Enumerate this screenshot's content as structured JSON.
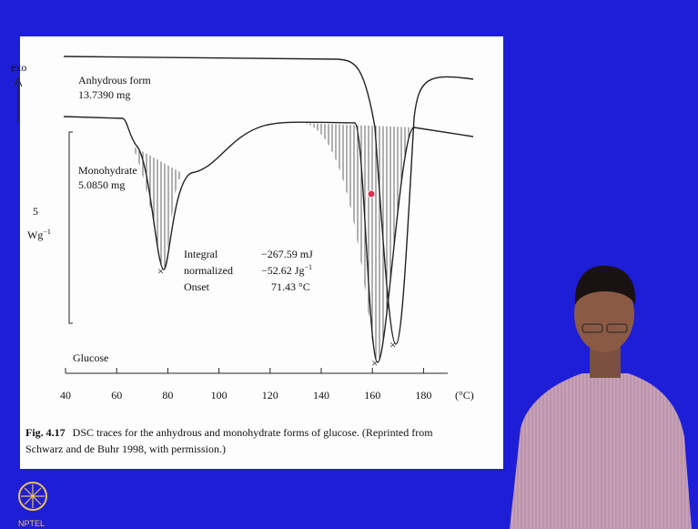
{
  "figure": {
    "y_axis": {
      "direction_label": "exo",
      "scale": "5",
      "unit": "Wg",
      "unit_exponent": "−1"
    },
    "traces": [
      {
        "name": "Anhydrous form",
        "mass": "13.7390 mg"
      },
      {
        "name": "Monohydrate",
        "mass": "5.0850 mg"
      }
    ],
    "annotation": {
      "labels": [
        "Integral",
        "normalized",
        "Onset"
      ],
      "values": [
        "−267.59 mJ",
        "−52.62 Jg",
        "71.43 °C"
      ],
      "value_exponent": "−1"
    },
    "sample": "Glucose",
    "x_axis": {
      "ticks": [
        "40",
        "60",
        "80",
        "100",
        "120",
        "140",
        "160",
        "180"
      ],
      "unit": "(°C)"
    },
    "caption": {
      "number": "Fig. 4.17",
      "line1": "DSC traces for the anhydrous and monohydrate forms of glucose. (Reprinted from",
      "line2": "Schwarz and de Buhr 1998, with permission.)"
    }
  },
  "logo": "NPTEL"
}
